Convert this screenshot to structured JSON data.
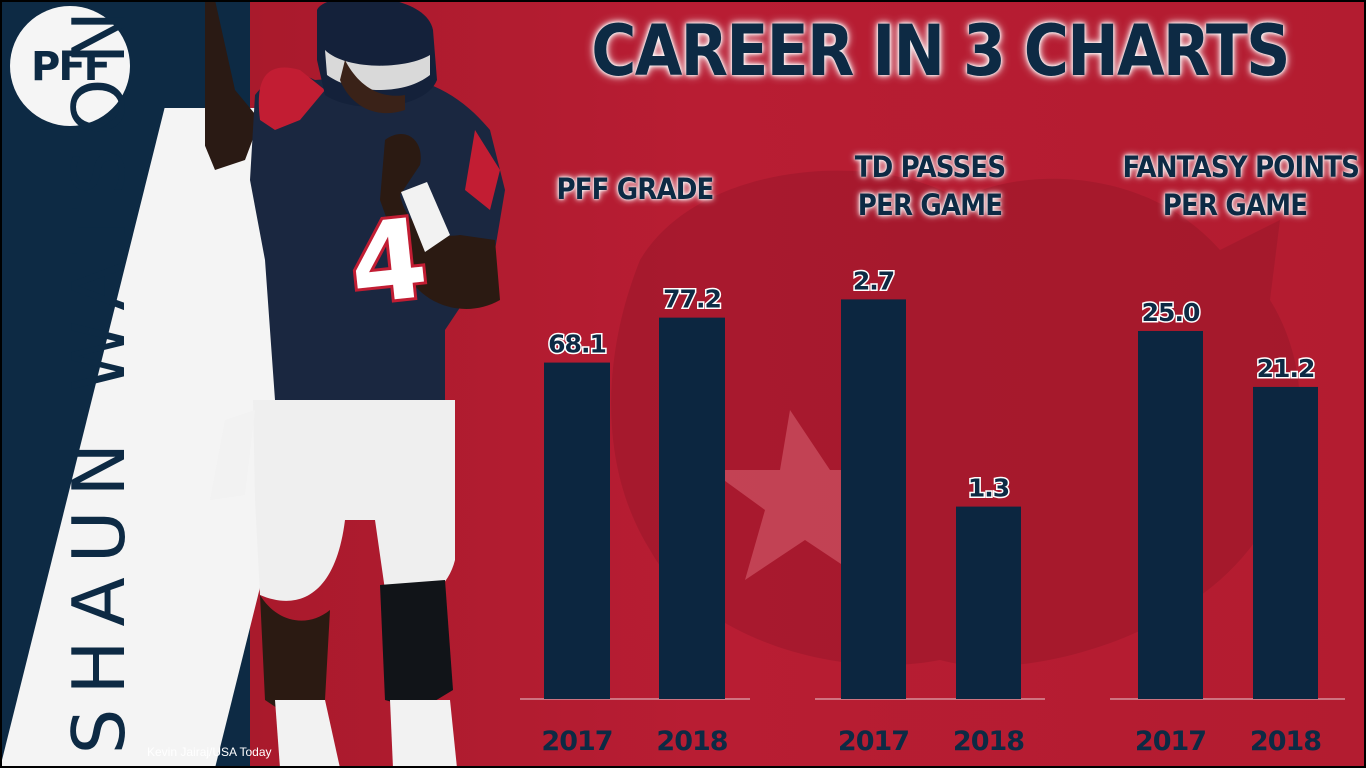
{
  "brand": {
    "logo_text": "PFF"
  },
  "player_name": "DESHAUN WATSON",
  "jersey_number": "4",
  "photo_credit": "Kevin Jairaj/USA Today",
  "title": "CAREER IN 3 CHARTS",
  "colors": {
    "navy": "#0d2a44",
    "bar": "#0c2640",
    "red": "#b31c30",
    "white": "#f4f4f4"
  },
  "chart_data": [
    {
      "type": "bar",
      "title": "PFF GRADE",
      "categories": [
        "2017",
        "2018"
      ],
      "values": [
        68.1,
        77.2
      ],
      "labels": [
        "68.1",
        "77.2"
      ]
    },
    {
      "type": "bar",
      "title": "TD PASSES PER GAME",
      "title_lines": [
        "TD PASSES",
        "PER GAME"
      ],
      "categories": [
        "2017",
        "2018"
      ],
      "values": [
        2.7,
        1.3
      ],
      "labels": [
        "2.7",
        "1.3"
      ]
    },
    {
      "type": "bar",
      "title": "FANTASY POINTS PER GAME",
      "title_lines": [
        "FANTASY POINTS",
        "PER GAME"
      ],
      "categories": [
        "2017",
        "2018"
      ],
      "values": [
        25.0,
        21.2
      ],
      "labels": [
        "25.0",
        "21.2"
      ]
    }
  ]
}
